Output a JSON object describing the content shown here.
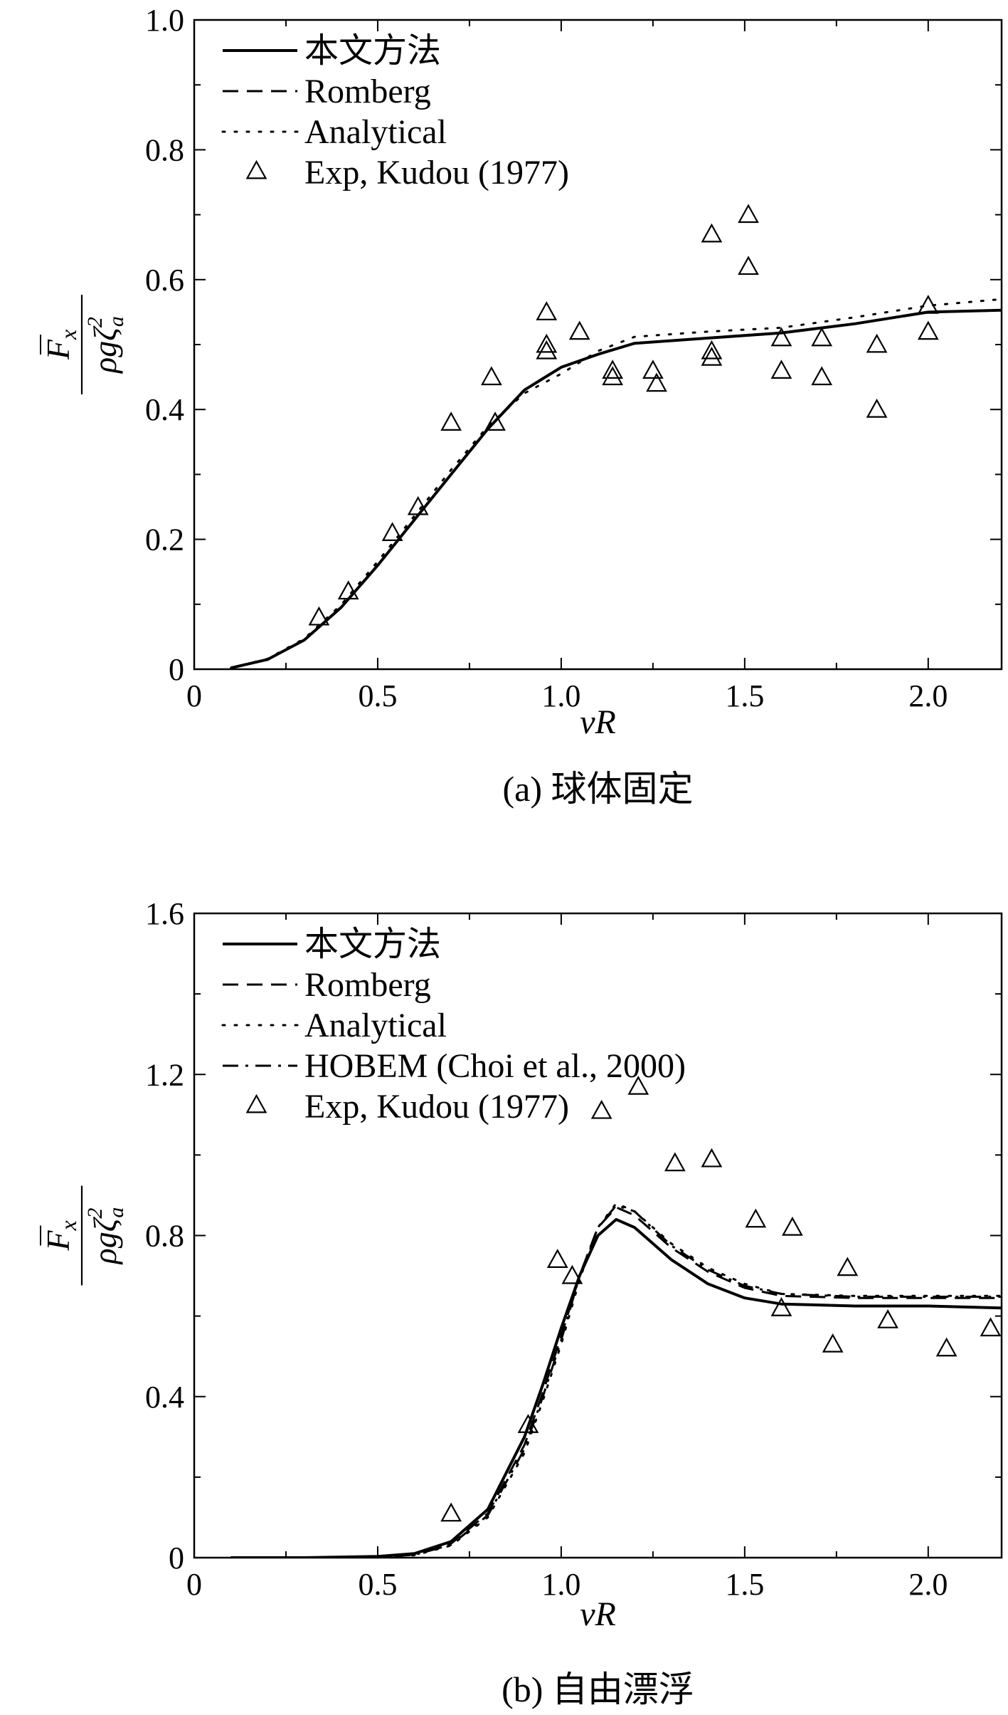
{
  "charts": [
    {
      "id": "a",
      "type": "line",
      "caption": "(a) 球体固定",
      "xlabel": "vR",
      "ylabel": {
        "numerator": "F",
        "numerator_sub": "x",
        "denominator": "ρgζ",
        "denominator_sup": "2",
        "denominator_sub": "a"
      },
      "xlim": [
        0,
        2.2
      ],
      "ylim": [
        0,
        1.0
      ],
      "x_ticks": [
        0,
        0.5,
        1.0,
        1.5,
        2.0
      ],
      "x_tick_labels": [
        "0",
        "0.5",
        "1.0",
        "1.5",
        "2.0"
      ],
      "y_ticks": [
        0,
        0.2,
        0.4,
        0.6,
        0.8,
        1.0
      ],
      "y_tick_labels": [
        "0",
        "0.2",
        "0.4",
        "0.6",
        "0.8",
        "1.0"
      ],
      "legend_position": "top-left",
      "series": [
        {
          "name": "本文方法",
          "style": "solid",
          "x": [
            0.1,
            0.2,
            0.3,
            0.4,
            0.5,
            0.6,
            0.7,
            0.8,
            0.9,
            1.0,
            1.1,
            1.2,
            1.4,
            1.6,
            1.8,
            2.0,
            2.2
          ],
          "y": [
            0.002,
            0.015,
            0.045,
            0.095,
            0.16,
            0.23,
            0.3,
            0.37,
            0.43,
            0.465,
            0.485,
            0.502,
            0.51,
            0.518,
            0.532,
            0.55,
            0.553
          ]
        },
        {
          "name": "Romberg",
          "style": "dashed",
          "x": [
            0.1,
            0.2,
            0.3,
            0.4,
            0.5,
            0.6,
            0.7,
            0.8,
            0.9,
            1.0,
            1.1,
            1.2,
            1.4,
            1.6,
            1.8,
            2.0,
            2.2
          ],
          "y": [
            0.002,
            0.015,
            0.045,
            0.095,
            0.16,
            0.23,
            0.3,
            0.37,
            0.43,
            0.465,
            0.485,
            0.502,
            0.51,
            0.518,
            0.532,
            0.55,
            0.553
          ]
        },
        {
          "name": "Analytical",
          "style": "dotted",
          "x": [
            0.1,
            0.2,
            0.3,
            0.4,
            0.5,
            0.6,
            0.7,
            0.8,
            0.9,
            1.0,
            1.1,
            1.2,
            1.4,
            1.6,
            1.8,
            2.0,
            2.2
          ],
          "y": [
            0.002,
            0.016,
            0.047,
            0.099,
            0.166,
            0.236,
            0.307,
            0.374,
            0.425,
            0.455,
            0.49,
            0.512,
            0.52,
            0.526,
            0.542,
            0.56,
            0.57
          ]
        }
      ],
      "scatter": {
        "name": "Exp, Kudou (1977)",
        "marker": "triangle",
        "points": [
          [
            0.34,
            0.08
          ],
          [
            0.42,
            0.12
          ],
          [
            0.54,
            0.21
          ],
          [
            0.61,
            0.25
          ],
          [
            0.7,
            0.38
          ],
          [
            0.81,
            0.45
          ],
          [
            0.82,
            0.38
          ],
          [
            0.96,
            0.55
          ],
          [
            0.96,
            0.5
          ],
          [
            0.96,
            0.49
          ],
          [
            1.05,
            0.52
          ],
          [
            1.14,
            0.46
          ],
          [
            1.14,
            0.45
          ],
          [
            1.25,
            0.46
          ],
          [
            1.26,
            0.44
          ],
          [
            1.41,
            0.67
          ],
          [
            1.51,
            0.7
          ],
          [
            1.51,
            0.62
          ],
          [
            1.41,
            0.49
          ],
          [
            1.41,
            0.48
          ],
          [
            1.6,
            0.51
          ],
          [
            1.6,
            0.46
          ],
          [
            1.71,
            0.51
          ],
          [
            1.71,
            0.45
          ],
          [
            1.86,
            0.5
          ],
          [
            1.86,
            0.4
          ],
          [
            2.0,
            0.56
          ],
          [
            2.0,
            0.52
          ]
        ]
      }
    },
    {
      "id": "b",
      "type": "line",
      "caption": "(b) 自由漂浮",
      "xlabel": "vR",
      "ylabel": {
        "numerator": "F",
        "numerator_sub": "x",
        "denominator": "ρgζ",
        "denominator_sup": "2",
        "denominator_sub": "a"
      },
      "xlim": [
        0,
        2.2
      ],
      "ylim": [
        0,
        1.6
      ],
      "x_ticks": [
        0,
        0.5,
        1.0,
        1.5,
        2.0
      ],
      "x_tick_labels": [
        "0",
        "0.5",
        "1.0",
        "1.5",
        "2.0"
      ],
      "y_ticks": [
        0,
        0.4,
        0.8,
        1.2,
        1.6
      ],
      "y_tick_labels": [
        "0",
        "0.4",
        "0.8",
        "1.2",
        "1.6"
      ],
      "legend_position": "top-left",
      "series": [
        {
          "name": "本文方法",
          "style": "solid",
          "x": [
            0.1,
            0.3,
            0.5,
            0.6,
            0.7,
            0.8,
            0.9,
            0.95,
            1.0,
            1.05,
            1.1,
            1.15,
            1.2,
            1.3,
            1.4,
            1.5,
            1.6,
            1.8,
            2.0,
            2.2
          ],
          "y": [
            0.0,
            0.0,
            0.003,
            0.01,
            0.04,
            0.12,
            0.3,
            0.43,
            0.57,
            0.7,
            0.8,
            0.84,
            0.82,
            0.74,
            0.68,
            0.645,
            0.63,
            0.625,
            0.625,
            0.62
          ]
        },
        {
          "name": "Romberg",
          "style": "dashed",
          "x": [
            0.1,
            0.3,
            0.5,
            0.6,
            0.7,
            0.8,
            0.9,
            0.95,
            1.0,
            1.05,
            1.1,
            1.15,
            1.2,
            1.3,
            1.4,
            1.5,
            1.6,
            1.8,
            2.0,
            2.2
          ],
          "y": [
            0.0,
            0.0,
            0.002,
            0.008,
            0.035,
            0.11,
            0.28,
            0.41,
            0.55,
            0.7,
            0.82,
            0.87,
            0.85,
            0.77,
            0.71,
            0.67,
            0.65,
            0.645,
            0.645,
            0.645
          ]
        },
        {
          "name": "Analytical",
          "style": "dotted",
          "x": [
            0.1,
            0.3,
            0.5,
            0.6,
            0.7,
            0.8,
            0.9,
            0.95,
            1.0,
            1.05,
            1.1,
            1.15,
            1.2,
            1.3,
            1.4,
            1.5,
            1.6,
            1.8,
            2.0,
            2.2
          ],
          "y": [
            0.0,
            0.0,
            0.002,
            0.006,
            0.03,
            0.1,
            0.26,
            0.39,
            0.53,
            0.69,
            0.82,
            0.88,
            0.86,
            0.78,
            0.72,
            0.68,
            0.655,
            0.65,
            0.65,
            0.65
          ]
        },
        {
          "name": "HOBEM (Choi et al., 2000)",
          "style": "dashdot",
          "x": [
            0.1,
            0.3,
            0.5,
            0.6,
            0.7,
            0.8,
            0.9,
            0.95,
            1.0,
            1.05,
            1.1,
            1.15,
            1.2,
            1.3,
            1.4,
            1.5,
            1.6,
            1.8,
            2.0,
            2.2
          ],
          "y": [
            0.0,
            0.0,
            0.002,
            0.007,
            0.032,
            0.105,
            0.27,
            0.4,
            0.54,
            0.7,
            0.82,
            0.875,
            0.86,
            0.775,
            0.715,
            0.675,
            0.655,
            0.648,
            0.648,
            0.648
          ]
        }
      ],
      "scatter": {
        "name": "Exp, Kudou (1977)",
        "marker": "triangle",
        "points": [
          [
            0.7,
            0.11
          ],
          [
            0.91,
            0.33
          ],
          [
            0.99,
            0.74
          ],
          [
            1.03,
            0.7
          ],
          [
            1.11,
            1.11
          ],
          [
            1.21,
            1.17
          ],
          [
            1.31,
            0.98
          ],
          [
            1.41,
            0.99
          ],
          [
            1.53,
            0.84
          ],
          [
            1.6,
            0.62
          ],
          [
            1.63,
            0.82
          ],
          [
            1.74,
            0.53
          ],
          [
            1.78,
            0.72
          ],
          [
            1.89,
            0.59
          ],
          [
            2.05,
            0.52
          ],
          [
            2.17,
            0.57
          ]
        ]
      }
    }
  ]
}
